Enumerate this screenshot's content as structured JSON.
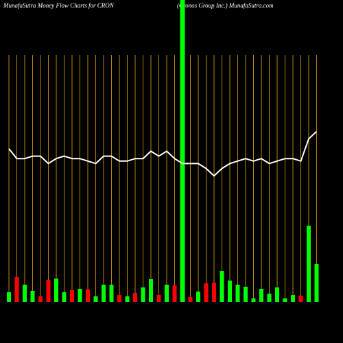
{
  "chart_data": {
    "type": "money-flow",
    "title": "MunafaSutra  Money Flow  Charts for CRON",
    "subtitle": "(Cronos Group Inc.) MunafaSutra.com",
    "grid_color": "#b8860b",
    "highlight_color": "#00ff00",
    "highlight_index": 22,
    "line": {
      "color": "#ffffff",
      "values": [
        62,
        58,
        58,
        59,
        59,
        56,
        58,
        59,
        58,
        58,
        57,
        56,
        59,
        59,
        57,
        57,
        58,
        58,
        61,
        59,
        61,
        58,
        56,
        56,
        56,
        54,
        51,
        54,
        56,
        57,
        58,
        57,
        58,
        56,
        57,
        58,
        58,
        57,
        66,
        69
      ],
      "ylim": [
        0,
        100
      ]
    },
    "bars": {
      "values": [
        14,
        36,
        25,
        16,
        8,
        32,
        34,
        14,
        17,
        19,
        18,
        8,
        25,
        25,
        10,
        8,
        13,
        21,
        33,
        10,
        25,
        24,
        null,
        7,
        15,
        27,
        28,
        45,
        31,
        25,
        22,
        5,
        19,
        12,
        21,
        5,
        10,
        9,
        111,
        55
      ],
      "colors": [
        "#00ff00",
        "#ff0000",
        "#00ff00",
        "#00ff00",
        "#ff0000",
        "#ff0000",
        "#00ff00",
        "#00ff00",
        "#ff0000",
        "#00ff00",
        "#ff0000",
        "#00ff00",
        "#00ff00",
        "#00ff00",
        "#ff0000",
        "#00ff00",
        "#ff0000",
        "#00ff00",
        "#00ff00",
        "#ff0000",
        "#00ff00",
        "#ff0000",
        null,
        "#ff0000",
        "#00ff00",
        "#ff0000",
        "#ff0000",
        "#00ff00",
        "#00ff00",
        "#00ff00",
        "#00ff00",
        "#00ff00",
        "#00ff00",
        "#00ff00",
        "#00ff00",
        "#00ff00",
        "#00ff00",
        "#ff0000",
        "#00ff00",
        "#00ff00"
      ],
      "ylim": [
        0,
        360
      ]
    }
  }
}
